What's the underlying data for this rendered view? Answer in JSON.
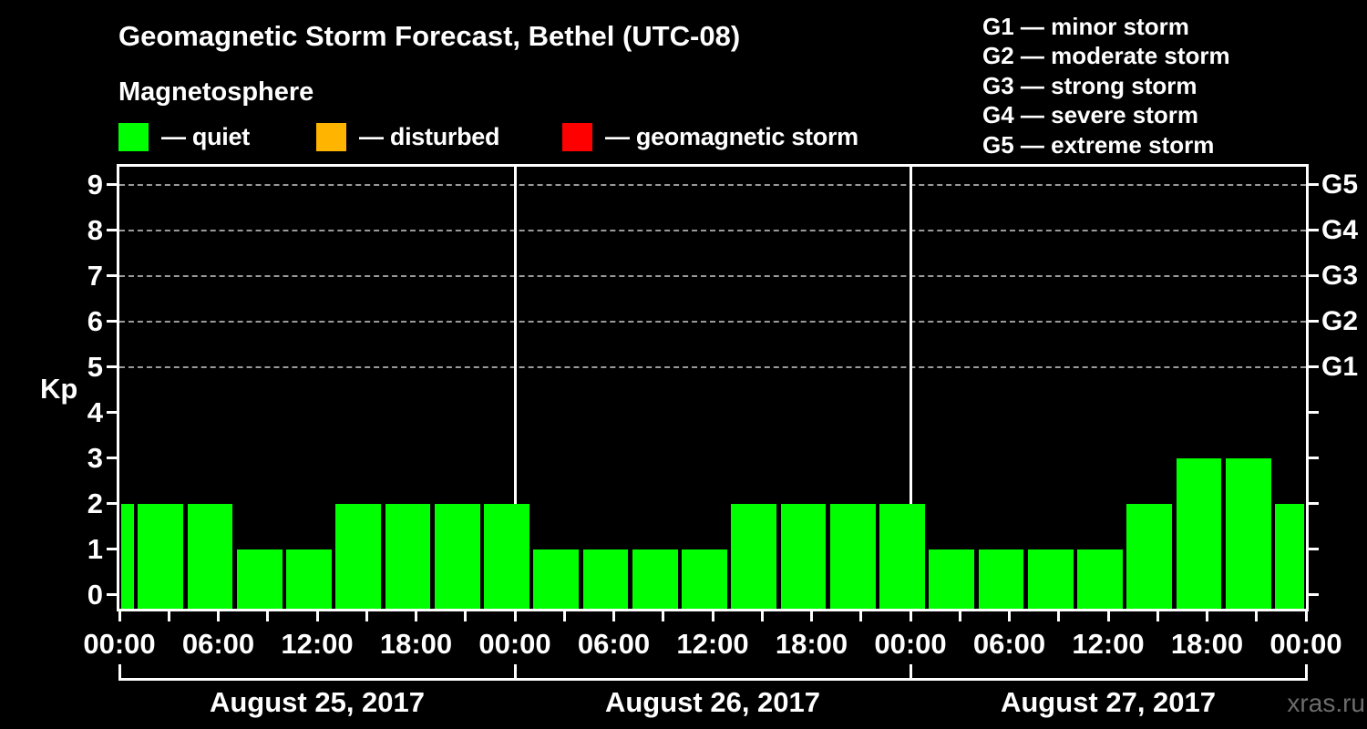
{
  "title": "Geomagnetic Storm Forecast, Bethel (UTC-08)",
  "subtitle": "Magnetosphere",
  "legend": [
    {
      "label": "— quiet",
      "status": "quiet",
      "color": "#00ff00"
    },
    {
      "label": "— disturbed",
      "status": "disturbed",
      "color": "#ffb400"
    },
    {
      "label": "— geomagnetic storm",
      "status": "storm",
      "color": "#ff0000"
    }
  ],
  "g_legend": [
    "G1 — minor storm",
    "G2 — moderate storm",
    "G3 — strong storm",
    "G4 — severe storm",
    "G5 — extreme storm"
  ],
  "watermark": "xras.ru",
  "chart_data": {
    "type": "bar",
    "title": "Geomagnetic Storm Forecast, Bethel (UTC-08)",
    "subtitle": "Magnetosphere",
    "ylabel": "Kp",
    "ylim": [
      0,
      9
    ],
    "y_ticks": [
      0,
      1,
      2,
      3,
      4,
      5,
      6,
      7,
      8,
      9
    ],
    "gridlines_kp": [
      5,
      6,
      7,
      8,
      9
    ],
    "right_axis_labels": [
      {
        "kp": 5,
        "label": "G1"
      },
      {
        "kp": 6,
        "label": "G2"
      },
      {
        "kp": 7,
        "label": "G3"
      },
      {
        "kp": 8,
        "label": "G4"
      },
      {
        "kp": 9,
        "label": "G5"
      }
    ],
    "x_range_hours": [
      0,
      72
    ],
    "x_tick_interval_hours": 3,
    "x_tick_labels": [
      {
        "hour": 0,
        "label": "00:00"
      },
      {
        "hour": 6,
        "label": "06:00"
      },
      {
        "hour": 12,
        "label": "12:00"
      },
      {
        "hour": 18,
        "label": "18:00"
      },
      {
        "hour": 24,
        "label": "00:00"
      },
      {
        "hour": 30,
        "label": "06:00"
      },
      {
        "hour": 36,
        "label": "12:00"
      },
      {
        "hour": 42,
        "label": "18:00"
      },
      {
        "hour": 48,
        "label": "00:00"
      },
      {
        "hour": 54,
        "label": "06:00"
      },
      {
        "hour": 60,
        "label": "12:00"
      },
      {
        "hour": 66,
        "label": "18:00"
      },
      {
        "hour": 72,
        "label": "00:00"
      }
    ],
    "day_separators_hours": [
      24,
      48
    ],
    "days": [
      {
        "label": "August 25, 2017",
        "start_hour": 0,
        "end_hour": 24
      },
      {
        "label": "August 26, 2017",
        "start_hour": 24,
        "end_hour": 48
      },
      {
        "label": "August 27, 2017",
        "start_hour": 48,
        "end_hour": 72
      }
    ],
    "bar_color_map": {
      "quiet": "#00ff00",
      "disturbed": "#ffb400",
      "storm": "#ff0000"
    },
    "bars": [
      {
        "start_hour": -2,
        "end_hour": 1,
        "kp": 2,
        "status": "quiet"
      },
      {
        "start_hour": 1,
        "end_hour": 4,
        "kp": 2,
        "status": "quiet"
      },
      {
        "start_hour": 4,
        "end_hour": 7,
        "kp": 2,
        "status": "quiet"
      },
      {
        "start_hour": 7,
        "end_hour": 10,
        "kp": 1,
        "status": "quiet"
      },
      {
        "start_hour": 10,
        "end_hour": 13,
        "kp": 1,
        "status": "quiet"
      },
      {
        "start_hour": 13,
        "end_hour": 16,
        "kp": 2,
        "status": "quiet"
      },
      {
        "start_hour": 16,
        "end_hour": 19,
        "kp": 2,
        "status": "quiet"
      },
      {
        "start_hour": 19,
        "end_hour": 22,
        "kp": 2,
        "status": "quiet"
      },
      {
        "start_hour": 22,
        "end_hour": 25,
        "kp": 2,
        "status": "quiet"
      },
      {
        "start_hour": 25,
        "end_hour": 28,
        "kp": 1,
        "status": "quiet"
      },
      {
        "start_hour": 28,
        "end_hour": 31,
        "kp": 1,
        "status": "quiet"
      },
      {
        "start_hour": 31,
        "end_hour": 34,
        "kp": 1,
        "status": "quiet"
      },
      {
        "start_hour": 34,
        "end_hour": 37,
        "kp": 1,
        "status": "quiet"
      },
      {
        "start_hour": 37,
        "end_hour": 40,
        "kp": 2,
        "status": "quiet"
      },
      {
        "start_hour": 40,
        "end_hour": 43,
        "kp": 2,
        "status": "quiet"
      },
      {
        "start_hour": 43,
        "end_hour": 46,
        "kp": 2,
        "status": "quiet"
      },
      {
        "start_hour": 46,
        "end_hour": 49,
        "kp": 2,
        "status": "quiet"
      },
      {
        "start_hour": 49,
        "end_hour": 52,
        "kp": 1,
        "status": "quiet"
      },
      {
        "start_hour": 52,
        "end_hour": 55,
        "kp": 1,
        "status": "quiet"
      },
      {
        "start_hour": 55,
        "end_hour": 58,
        "kp": 1,
        "status": "quiet"
      },
      {
        "start_hour": 58,
        "end_hour": 61,
        "kp": 1,
        "status": "quiet"
      },
      {
        "start_hour": 61,
        "end_hour": 64,
        "kp": 2,
        "status": "quiet"
      },
      {
        "start_hour": 64,
        "end_hour": 67,
        "kp": 3,
        "status": "quiet"
      },
      {
        "start_hour": 67,
        "end_hour": 70,
        "kp": 3,
        "status": "quiet"
      },
      {
        "start_hour": 70,
        "end_hour": 73,
        "kp": 2,
        "status": "quiet"
      }
    ]
  }
}
